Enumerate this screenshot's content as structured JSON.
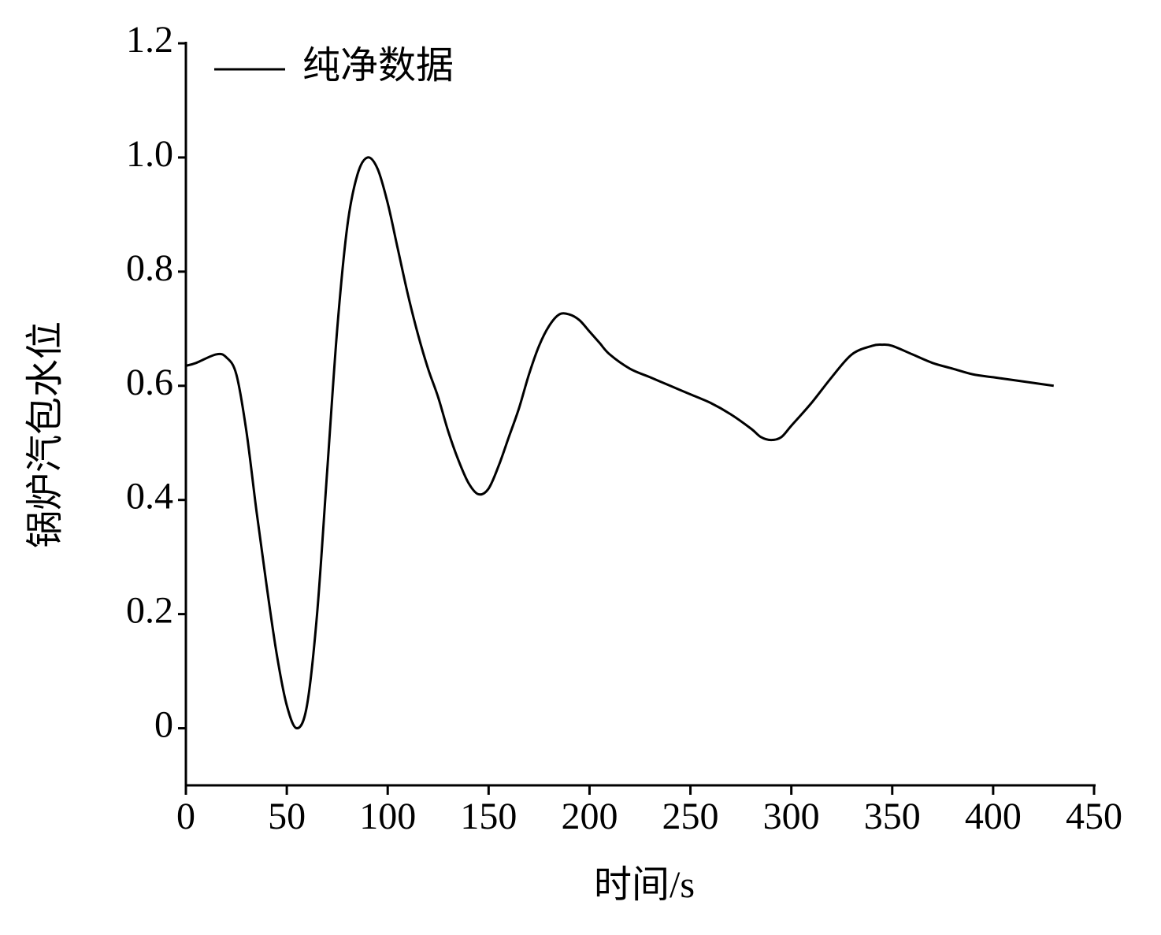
{
  "chart_data": {
    "type": "line",
    "x_label": "时间/s",
    "y_label": "锅炉汽包水位",
    "xlim": [
      0,
      450
    ],
    "xticks": [
      0,
      50,
      100,
      150,
      200,
      250,
      300,
      350,
      400,
      450
    ],
    "ylim": [
      -0.1,
      1.2
    ],
    "yticks": [
      0,
      0.2,
      0.4,
      0.6,
      0.8,
      {
        "value": 1,
        "label": "1.0"
      },
      1.2
    ],
    "legend": "upper left",
    "x": [
      0,
      5,
      15,
      20,
      25,
      30,
      35,
      40,
      45,
      50,
      55,
      60,
      65,
      70,
      75,
      80,
      85,
      90,
      95,
      100,
      105,
      110,
      115,
      120,
      125,
      130,
      135,
      140,
      145,
      150,
      155,
      160,
      165,
      170,
      175,
      180,
      185,
      190,
      195,
      200,
      205,
      210,
      220,
      230,
      240,
      250,
      260,
      270,
      280,
      285,
      290,
      295,
      300,
      310,
      320,
      330,
      340,
      345,
      350,
      360,
      370,
      380,
      390,
      400,
      410,
      420,
      430
    ],
    "series": [
      {
        "name": "纯净数据",
        "color": "#000000",
        "values": [
          0.635,
          0.64,
          0.655,
          0.65,
          0.62,
          0.52,
          0.38,
          0.25,
          0.13,
          0.04,
          0.0,
          0.04,
          0.2,
          0.45,
          0.7,
          0.88,
          0.97,
          1.0,
          0.98,
          0.92,
          0.84,
          0.76,
          0.69,
          0.63,
          0.58,
          0.52,
          0.47,
          0.43,
          0.41,
          0.42,
          0.46,
          0.51,
          0.56,
          0.62,
          0.67,
          0.705,
          0.725,
          0.725,
          0.715,
          0.695,
          0.675,
          0.655,
          0.63,
          0.615,
          0.6,
          0.585,
          0.57,
          0.55,
          0.525,
          0.51,
          0.505,
          0.51,
          0.53,
          0.57,
          0.615,
          0.655,
          0.67,
          0.672,
          0.67,
          0.655,
          0.64,
          0.63,
          0.62,
          0.615,
          0.61,
          0.605,
          0.6
        ]
      }
    ]
  }
}
